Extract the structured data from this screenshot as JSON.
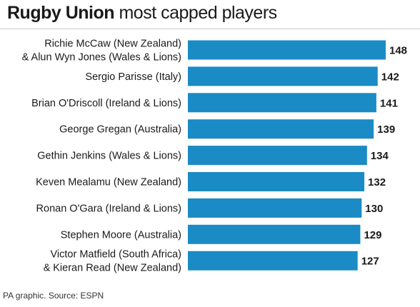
{
  "title": {
    "bold": "Rugby Union",
    "rest": "most capped players"
  },
  "source": "PA graphic. Source: ESPN",
  "colors": {
    "bar": "#1a8bc5",
    "text": "#1a1a1a"
  },
  "chart_data": {
    "type": "bar",
    "orientation": "horizontal",
    "title": "Rugby Union most capped players",
    "categories": [
      [
        "Richie McCaw (New Zealand)",
        "& Alun Wyn Jones (Wales & Lions)"
      ],
      [
        "Sergio Parisse (Italy)"
      ],
      [
        "Brian O'Driscoll (Ireland & Lions)"
      ],
      [
        "George Gregan (Australia)"
      ],
      [
        "Gethin Jenkins (Wales & Lions)"
      ],
      [
        "Keven Mealamu (New Zealand)"
      ],
      [
        "Ronan O'Gara (Ireland & Lions)"
      ],
      [
        "Stephen Moore (Australia)"
      ],
      [
        "Victor Matfield (South Africa)",
        "& Kieran Read (New Zealand)"
      ]
    ],
    "values": [
      148,
      142,
      141,
      139,
      134,
      132,
      130,
      129,
      127
    ],
    "value_labels": [
      "148",
      "142",
      "141",
      "139",
      "134",
      "132",
      "130",
      "129",
      "127"
    ],
    "xlim": [
      0,
      148
    ],
    "grid": false,
    "legend": "none"
  }
}
